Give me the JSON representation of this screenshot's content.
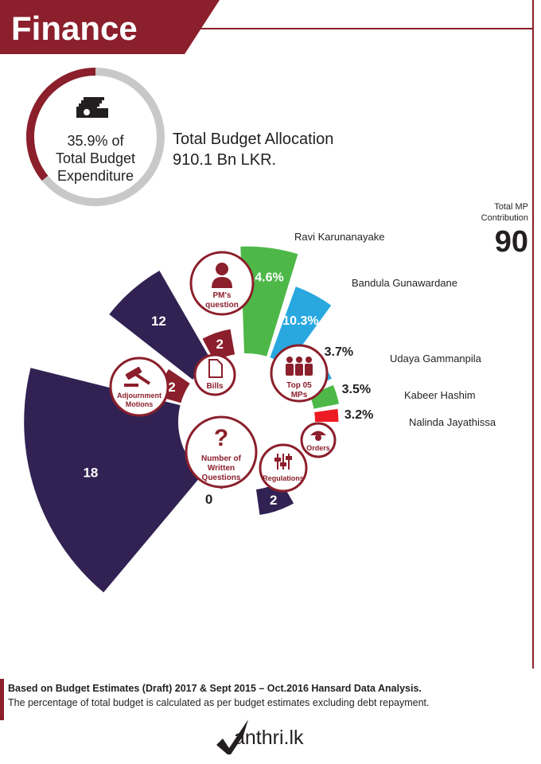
{
  "header": {
    "title": "Finance"
  },
  "budget": {
    "share_line1": "35.9% of",
    "share_line2": "Total Budget",
    "share_line3": "Expenditure",
    "share_fraction": 0.359,
    "allocation_label": "Total Budget Allocation",
    "allocation_value": "910.1 Bn LKR."
  },
  "total_mp": {
    "label_line1": "Total MP",
    "label_line2": "Contribution",
    "value": "90"
  },
  "chart_data": [
    {
      "type": "bar",
      "title": "",
      "categories": [
        "Ravi Karunanayake",
        "Bandula Gunawardane",
        "Udaya Gammanpila",
        "Kabeer Hashim",
        "Nalinda Jayathissa"
      ],
      "values": [
        14.6,
        10.3,
        3.7,
        3.5,
        3.2
      ],
      "value_labels": [
        "14.6%",
        "10.3%",
        "3.7%",
        "3.5%",
        "3.2%"
      ],
      "colors": [
        "#4db848",
        "#29a8e0",
        "#29a8e0",
        "#4db848",
        "#ed1c24"
      ],
      "center_label_line1": "Top 05",
      "center_label_line2": "MPs"
    },
    {
      "type": "bar",
      "title": "",
      "categories": [
        "PM's question",
        "Bills",
        "Adjournment Motions",
        "Number of Written Questions",
        "Regulations",
        "Orders"
      ],
      "values": [
        2,
        12,
        2,
        18,
        0,
        2
      ],
      "value_labels": [
        "2",
        "12",
        "2",
        "18",
        "0",
        "2"
      ],
      "colors": [
        "#8b1f2b",
        "#312253",
        "#8b1f2b",
        "#312253",
        "#8b1f2b",
        "#312253"
      ]
    }
  ],
  "icons": {
    "pm_question": {
      "line1": "PM's",
      "line2": "question",
      "icon": "person-icon"
    },
    "bills": {
      "line1": "Bills",
      "icon": "document-icon"
    },
    "adjournment": {
      "line1": "Adjournment",
      "line2": "Motions",
      "icon": "gavel-icon"
    },
    "written": {
      "line1": "Number of",
      "line2": "Written",
      "line3": "Questions",
      "icon": "question-mark-icon"
    },
    "regulations": {
      "line1": "Regulations",
      "icon": "sliders-icon"
    },
    "orders": {
      "line1": "Orders",
      "icon": "officer-icon"
    }
  },
  "footer": {
    "line1": "Based on Budget Estimates (Draft) 2017 & Sept 2015 – Oct.2016  Hansard Data Analysis.",
    "line2": "The percentage of total budget is calculated as per budget estimates excluding debt repayment.",
    "logo": "anthri.lk"
  },
  "colors": {
    "maroon": "#8b1f2b",
    "navy": "#312253",
    "green": "#4db848",
    "blue": "#29a8e0",
    "red": "#ed1c24",
    "ring_grey": "#c8c8c8"
  }
}
